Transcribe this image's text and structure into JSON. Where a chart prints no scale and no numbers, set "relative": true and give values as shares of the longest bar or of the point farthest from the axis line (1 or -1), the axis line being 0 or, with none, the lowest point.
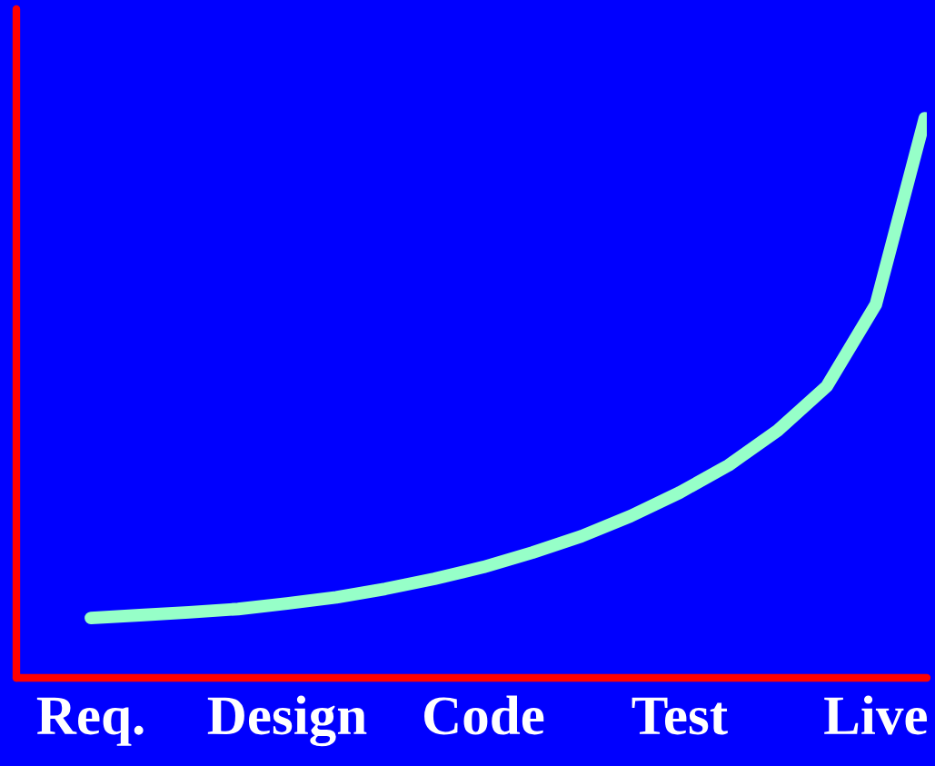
{
  "chart_data": {
    "type": "line",
    "relative": true,
    "categories": [
      "Req.",
      null,
      null,
      null,
      "Design",
      null,
      null,
      null,
      "Code",
      null,
      null,
      null,
      "Test",
      null,
      null,
      null,
      "Live",
      null
    ],
    "series": [
      {
        "color": "#96ffc8",
        "values": [
          0.107,
          0.112,
          0.117,
          0.123,
          0.133,
          0.144,
          0.159,
          0.177,
          0.198,
          0.224,
          0.253,
          0.289,
          0.331,
          0.38,
          0.442,
          0.521,
          0.667,
          1.0
        ]
      }
    ],
    "grid": false,
    "line_style": "solid"
  }
}
